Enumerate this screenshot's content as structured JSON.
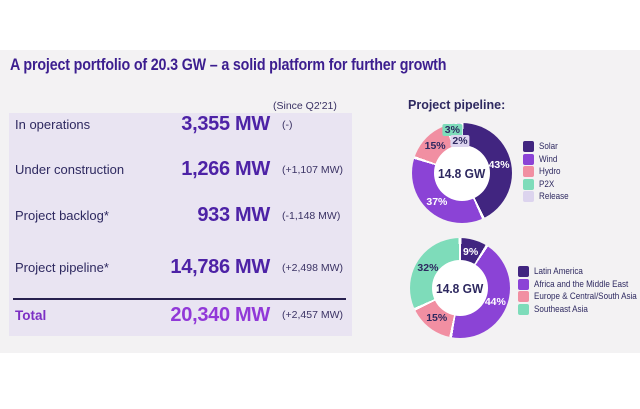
{
  "title": "A project portfolio of 20.3 GW – a solid platform for further growth",
  "colors": {
    "brand_purple": "#3c1e8f",
    "value_purple": "#4d22a6",
    "total_purple": "#9138d8",
    "panel_lavender": "#e9e4f2"
  },
  "table": {
    "header_note": "(Since Q2'21)",
    "rows": [
      {
        "label": "In operations",
        "value": "3,355 MW",
        "delta": "(-)"
      },
      {
        "label": "Under construction",
        "value": "1,266 MW",
        "delta": "(+1,107 MW)"
      },
      {
        "label": "Project backlog*",
        "value": "933 MW",
        "delta": "(-1,148 MW)"
      },
      {
        "label": "Project pipeline*",
        "value": "14,786 MW",
        "delta": "(+2,498 MW)"
      }
    ],
    "total": {
      "label": "Total",
      "value": "20,340 MW",
      "delta": "(+2,457 MW)"
    }
  },
  "charts_heading": "Project pipeline:",
  "chart_data": [
    {
      "type": "pie",
      "donut": true,
      "title": "",
      "center_label": "14.8 GW",
      "categories": [
        "Solar",
        "Wind",
        "Hydro",
        "P2X",
        "Release"
      ],
      "values": [
        43,
        37,
        15,
        3,
        2
      ],
      "labels": [
        "43%",
        "37%",
        "15%",
        "3%",
        "2%"
      ],
      "colors": [
        "#412580",
        "#8b43d6",
        "#f18fa2",
        "#7edcba",
        "#dcd4ee"
      ],
      "unit": "%",
      "legend_position": "right",
      "start_angle_deg": 0,
      "label_r": [
        38,
        38,
        38,
        44,
        32
      ]
    },
    {
      "type": "pie",
      "donut": true,
      "title": "",
      "center_label": "14.8 GW",
      "categories": [
        "Latin America",
        "Africa and the Middle East",
        "Europe & Central/South Asia",
        "Southeast Asia"
      ],
      "values": [
        9,
        44,
        15,
        32
      ],
      "labels": [
        "9%",
        "44%",
        "15%",
        "32%"
      ],
      "colors": [
        "#412580",
        "#8b43d6",
        "#f18fa2",
        "#7edcba"
      ],
      "unit": "%",
      "legend_position": "right",
      "start_angle_deg": 0,
      "label_r": [
        38,
        38,
        38,
        38
      ]
    }
  ]
}
